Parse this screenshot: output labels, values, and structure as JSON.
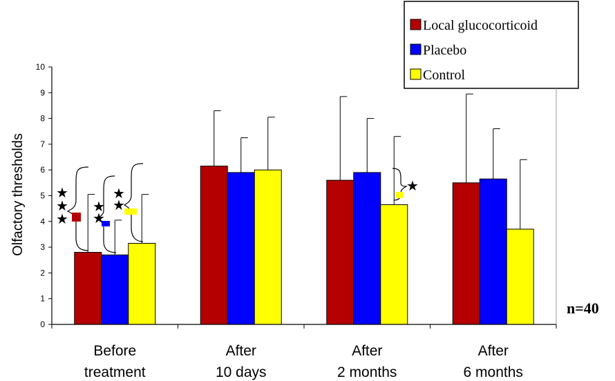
{
  "chart_data": {
    "type": "bar",
    "ylabel": "Olfactory thresholds",
    "ylim": [
      0,
      10
    ],
    "yticks": [
      "0",
      "1",
      "2",
      "3",
      "4",
      "5",
      "6",
      "7",
      "8",
      "9",
      "10"
    ],
    "categories": [
      [
        "Before",
        "treatment"
      ],
      [
        "After",
        "10 days"
      ],
      [
        "After",
        "2 months"
      ],
      [
        "After",
        "6 months"
      ]
    ],
    "series": [
      {
        "name": "Local glucocorticoid",
        "color": "#b40000",
        "values": [
          2.8,
          6.15,
          5.6,
          5.5
        ],
        "error_upper": [
          5.05,
          8.3,
          8.85,
          8.95
        ]
      },
      {
        "name": "Placebo",
        "color": "#0000ff",
        "values": [
          2.7,
          5.9,
          5.9,
          5.65
        ],
        "error_upper": [
          4.05,
          7.25,
          8.0,
          7.6
        ]
      },
      {
        "name": "Control",
        "color": "#ffff00",
        "values": [
          3.15,
          6.0,
          4.65,
          3.7
        ],
        "error_upper": [
          5.05,
          8.05,
          7.3,
          6.4
        ]
      }
    ],
    "legend_position": "top-right",
    "grid": false,
    "annotations": {
      "n_label": "n=40",
      "significance_symbol": "★"
    }
  }
}
